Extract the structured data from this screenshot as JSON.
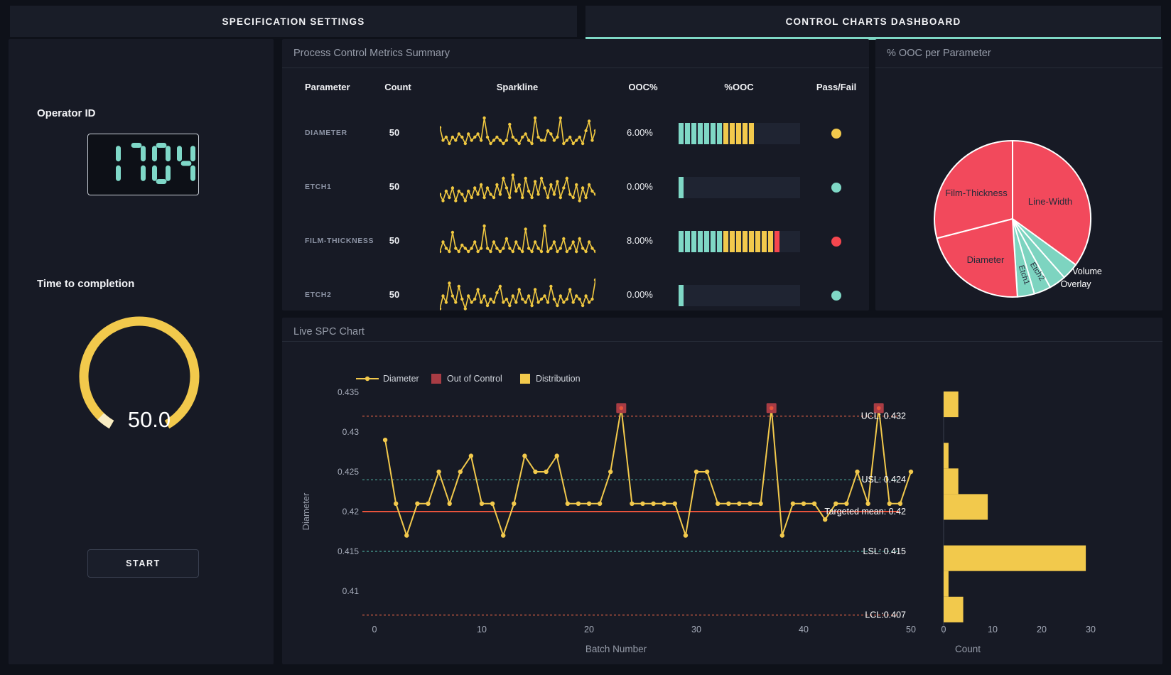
{
  "tabs": [
    {
      "label": "SPECIFICATION SETTINGS",
      "active": false
    },
    {
      "label": "CONTROL CHARTS DASHBOARD",
      "active": true
    }
  ],
  "colors": {
    "teal": "#7fd8c6",
    "yellow": "#f2c94c",
    "red": "#f5464e",
    "pie_red": "#f2495c",
    "pie_teal": "#7dd4c0",
    "brick": "#a83c44",
    "mean_line": "#e8533c",
    "dashed_red": "#d95f45",
    "dashed_teal": "#4aa396",
    "spark": "#f0c840",
    "tab_underline": "#7fd8c6",
    "digit": "#7fd8c8",
    "gauge": "#f2c94c",
    "gauge_tip": "#f8ecc3"
  },
  "sidebar": {
    "operator_label": "Operator ID",
    "operator_id": "1704",
    "timer_label": "Time to completion",
    "timer_value": "50.0",
    "start_label": "START"
  },
  "metrics_panel": {
    "title": "Process Control Metrics Summary",
    "columns": [
      "Parameter",
      "Count",
      "Sparkline",
      "OOC%",
      "%OOC",
      "Pass/Fail"
    ],
    "rows": [
      {
        "parameter": "DIAMETER",
        "count": "50",
        "ooc_pct": "6.00%",
        "segments": {
          "teal": 7,
          "yellow": 5,
          "red": 0
        },
        "status": "#f2c94c",
        "sparkline": [
          7,
          3,
          4,
          2,
          4,
          3,
          5,
          4,
          2,
          5,
          3,
          4,
          5,
          3,
          10,
          4,
          2,
          3,
          4,
          3,
          2,
          3,
          8,
          4,
          3,
          2,
          4,
          5,
          3,
          2,
          10,
          4,
          3,
          3,
          6,
          5,
          3,
          4,
          10,
          2,
          3,
          4,
          2,
          3,
          4,
          2,
          6,
          9,
          3,
          6
        ]
      },
      {
        "parameter": "ETCH1",
        "count": "50",
        "ooc_pct": "0.00%",
        "segments": {
          "teal": 1,
          "yellow": 0,
          "red": 0
        },
        "status": "#7fd8c6",
        "sparkline": [
          3,
          1,
          4,
          2,
          5,
          1,
          4,
          3,
          1,
          4,
          2,
          5,
          3,
          6,
          2,
          5,
          3,
          2,
          6,
          3,
          8,
          5,
          2,
          9,
          4,
          6,
          2,
          8,
          4,
          2,
          7,
          3,
          8,
          5,
          2,
          6,
          3,
          7,
          2,
          5,
          8,
          3,
          2,
          6,
          1,
          5,
          2,
          6,
          4,
          3
        ]
      },
      {
        "parameter": "FILM-THICKNESS",
        "count": "50",
        "ooc_pct": "8.00%",
        "segments": {
          "teal": 7,
          "yellow": 8,
          "red": 1
        },
        "status": "#f5464e",
        "sparkline": [
          2,
          5,
          3,
          2,
          8,
          3,
          2,
          4,
          3,
          2,
          3,
          5,
          2,
          3,
          10,
          3,
          2,
          5,
          3,
          2,
          3,
          6,
          3,
          2,
          5,
          3,
          2,
          9,
          3,
          2,
          5,
          3,
          2,
          10,
          2,
          3,
          5,
          2,
          3,
          6,
          2,
          3,
          5,
          2,
          6,
          3,
          2,
          5,
          3,
          2
        ]
      },
      {
        "parameter": "ETCH2",
        "count": "50",
        "ooc_pct": "0.00%",
        "segments": {
          "teal": 1,
          "yellow": 0,
          "red": 0
        },
        "status": "#7fd8c6",
        "sparkline": [
          1,
          5,
          3,
          9,
          5,
          3,
          8,
          4,
          1,
          5,
          3,
          4,
          7,
          3,
          5,
          2,
          4,
          3,
          6,
          8,
          3,
          4,
          2,
          5,
          3,
          7,
          4,
          3,
          5,
          2,
          7,
          3,
          4,
          5,
          3,
          8,
          4,
          2,
          5,
          3,
          4,
          7,
          3,
          5,
          4,
          2,
          5,
          3,
          4,
          10
        ]
      }
    ]
  },
  "pie_panel": {
    "title": "% OOC per Parameter"
  },
  "spc_panel": {
    "title": "Live SPC Chart",
    "legend": [
      {
        "label": "Diameter",
        "type": "line",
        "color": "#f2c94c"
      },
      {
        "label": "Out of Control",
        "type": "square",
        "color": "#a83c44"
      },
      {
        "label": "Distribution",
        "type": "square",
        "color": "#f2c94c"
      }
    ]
  },
  "chart_data": [
    {
      "id": "spc",
      "type": "line",
      "title": "Live SPC Chart",
      "xlabel": "Batch Number",
      "ylabel": "Diameter",
      "xticks": [
        0,
        10,
        20,
        30,
        40,
        50
      ],
      "yticks": [
        0.435,
        0.43,
        0.425,
        0.42,
        0.415,
        0.41
      ],
      "ylim": [
        0.406,
        0.4355
      ],
      "xlim": [
        0,
        50
      ],
      "series": [
        {
          "name": "Diameter",
          "values": [
            0.429,
            0.421,
            0.417,
            0.421,
            0.421,
            0.425,
            0.421,
            0.425,
            0.427,
            0.421,
            0.421,
            0.417,
            0.421,
            0.427,
            0.425,
            0.425,
            0.427,
            0.421,
            0.421,
            0.421,
            0.421,
            0.425,
            0.433,
            0.421,
            0.421,
            0.421,
            0.421,
            0.421,
            0.417,
            0.425,
            0.425,
            0.421,
            0.421,
            0.421,
            0.421,
            0.421,
            0.433,
            0.417,
            0.421,
            0.421,
            0.421,
            0.419,
            0.421,
            0.421,
            0.425,
            0.421,
            0.433,
            0.421,
            0.421,
            0.425
          ]
        }
      ],
      "out_of_control_batches": [
        23,
        37,
        47
      ],
      "control_lines": [
        {
          "label": "UCL: 0.432",
          "value": 0.432,
          "style": "dashed",
          "color": "#d95f45"
        },
        {
          "label": "USL: 0.424",
          "value": 0.424,
          "style": "dashed",
          "color": "#4aa396"
        },
        {
          "label": "Targeted mean: 0.42",
          "value": 0.42,
          "style": "solid",
          "color": "#e8533c"
        },
        {
          "label": "LSL: 0.415",
          "value": 0.415,
          "style": "dashed",
          "color": "#4aa396"
        },
        {
          "label": "LCL:0.407",
          "value": 0.407,
          "style": "dashed",
          "color": "#d95f45"
        }
      ]
    },
    {
      "id": "distribution",
      "type": "bar",
      "orientation": "horizontal",
      "xlabel": "Count",
      "xticks": [
        0,
        10,
        20,
        30
      ],
      "bin_centers_top_to_bottom": [
        0.433,
        0.431,
        0.429,
        0.427,
        0.425,
        0.423,
        0.421,
        0.419,
        0.417
      ],
      "counts_top_to_bottom": [
        3,
        0,
        1,
        3,
        9,
        0,
        29,
        1,
        4
      ],
      "color": "#f2c94c"
    },
    {
      "id": "ooc_pie",
      "type": "pie",
      "title": "% OOC per Parameter",
      "slices": [
        {
          "label": "Line-Width",
          "pct": 35,
          "color": "#f2495c"
        },
        {
          "label": "Volume",
          "pct": 3.5,
          "color": "#7dd4c0"
        },
        {
          "label": "Overlay",
          "pct": 3.5,
          "color": "#7dd4c0"
        },
        {
          "label": "Etch2",
          "pct": 3.5,
          "color": "#7dd4c0"
        },
        {
          "label": "Etch1",
          "pct": 3.5,
          "color": "#7dd4c0"
        },
        {
          "label": "Diameter",
          "pct": 22,
          "color": "#f2495c"
        },
        {
          "label": "Film-Thickness",
          "pct": 29,
          "color": "#f2495c"
        }
      ]
    }
  ]
}
